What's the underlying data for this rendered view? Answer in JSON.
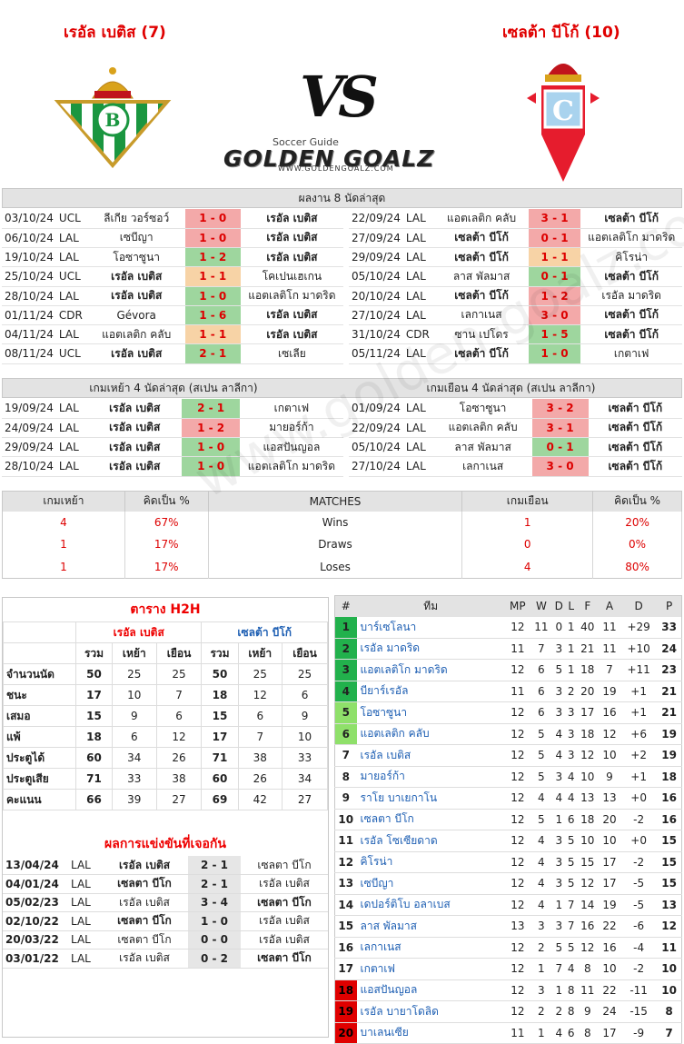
{
  "header": {
    "home_title": "เรอัล เบติส (7)",
    "away_title": "เซลต้า บีโก้ (10)",
    "vs": "VS",
    "brand_sub": "Soccer Guide",
    "brand": "GOLDEN GOALZ",
    "brand_url": "WWW.GOLDENGOALZ.COM",
    "watermark": "www.golden-goalz.com"
  },
  "last8": {
    "title": "ผลงาน 8 นัดล่าสุด",
    "home": [
      {
        "date": "03/10/24",
        "comp": "UCL",
        "t1": "ลีเกีย วอร์ซอว์",
        "score": "1 - 0",
        "t2": "เรอัล เบติส",
        "res": "loss",
        "b1": false,
        "b2": true
      },
      {
        "date": "06/10/24",
        "comp": "LAL",
        "t1": "เซบีญา",
        "score": "1 - 0",
        "t2": "เรอัล เบติส",
        "res": "loss",
        "b1": false,
        "b2": true
      },
      {
        "date": "19/10/24",
        "comp": "LAL",
        "t1": "โอซาซูนา",
        "score": "1 - 2",
        "t2": "เรอัล เบติส",
        "res": "win",
        "b1": false,
        "b2": true
      },
      {
        "date": "25/10/24",
        "comp": "UCL",
        "t1": "เรอัล เบติส",
        "score": "1 - 1",
        "t2": "โคเปนเฮเกน",
        "res": "draw",
        "b1": true,
        "b2": false
      },
      {
        "date": "28/10/24",
        "comp": "LAL",
        "t1": "เรอัล เบติส",
        "score": "1 - 0",
        "t2": "แอตเลติโก มาดริด",
        "res": "win",
        "b1": true,
        "b2": false
      },
      {
        "date": "01/11/24",
        "comp": "CDR",
        "t1": "Gévora",
        "score": "1 - 6",
        "t2": "เรอัล เบติส",
        "res": "win",
        "b1": false,
        "b2": true
      },
      {
        "date": "04/11/24",
        "comp": "LAL",
        "t1": "แอตเลติก คลับ",
        "score": "1 - 1",
        "t2": "เรอัล เบติส",
        "res": "draw",
        "b1": false,
        "b2": true
      },
      {
        "date": "08/11/24",
        "comp": "UCL",
        "t1": "เรอัล เบติส",
        "score": "2 - 1",
        "t2": "เซเลีย",
        "res": "win",
        "b1": true,
        "b2": false
      }
    ],
    "away": [
      {
        "date": "22/09/24",
        "comp": "LAL",
        "t1": "แอตเลติก คลับ",
        "score": "3 - 1",
        "t2": "เซลต้า บีโก้",
        "res": "loss",
        "b1": false,
        "b2": true
      },
      {
        "date": "27/09/24",
        "comp": "LAL",
        "t1": "เซลต้า บีโก้",
        "score": "0 - 1",
        "t2": "แอตเลติโก มาดริด",
        "res": "loss",
        "b1": true,
        "b2": false
      },
      {
        "date": "29/09/24",
        "comp": "LAL",
        "t1": "เซลต้า บีโก้",
        "score": "1 - 1",
        "t2": "คิโรน่า",
        "res": "draw",
        "b1": true,
        "b2": false
      },
      {
        "date": "05/10/24",
        "comp": "LAL",
        "t1": "ลาส พัลมาส",
        "score": "0 - 1",
        "t2": "เซลต้า บีโก้",
        "res": "win",
        "b1": false,
        "b2": true
      },
      {
        "date": "20/10/24",
        "comp": "LAL",
        "t1": "เซลต้า บีโก้",
        "score": "1 - 2",
        "t2": "เรอัล มาดริด",
        "res": "loss",
        "b1": true,
        "b2": false
      },
      {
        "date": "27/10/24",
        "comp": "LAL",
        "t1": "เลกาเนส",
        "score": "3 - 0",
        "t2": "เซลต้า บีโก้",
        "res": "loss",
        "b1": false,
        "b2": true
      },
      {
        "date": "31/10/24",
        "comp": "CDR",
        "t1": "ซาน เปโดร",
        "score": "1 - 5",
        "t2": "เซลต้า บีโก้",
        "res": "win",
        "b1": false,
        "b2": true
      },
      {
        "date": "05/11/24",
        "comp": "LAL",
        "t1": "เซลต้า บีโก้",
        "score": "1 - 0",
        "t2": "เกตาเฟ",
        "res": "win",
        "b1": true,
        "b2": false
      }
    ]
  },
  "last4": {
    "home_title": "เกมเหย้า 4 นัดล่าสุด (สเปน ลาลีกา)",
    "away_title": "เกมเยือน 4 นัดล่าสุด (สเปน ลาลีกา)",
    "home": [
      {
        "date": "19/09/24",
        "comp": "LAL",
        "t1": "เรอัล เบติส",
        "score": "2 - 1",
        "t2": "เกตาเฟ",
        "res": "win",
        "b1": true,
        "b2": false
      },
      {
        "date": "24/09/24",
        "comp": "LAL",
        "t1": "เรอัล เบติส",
        "score": "1 - 2",
        "t2": "มายอร์ก้า",
        "res": "loss",
        "b1": true,
        "b2": false
      },
      {
        "date": "29/09/24",
        "comp": "LAL",
        "t1": "เรอัล เบติส",
        "score": "1 - 0",
        "t2": "แอสปันญอล",
        "res": "win",
        "b1": true,
        "b2": false
      },
      {
        "date": "28/10/24",
        "comp": "LAL",
        "t1": "เรอัล เบติส",
        "score": "1 - 0",
        "t2": "แอตเลติโก มาดริด",
        "res": "win",
        "b1": true,
        "b2": false
      }
    ],
    "away": [
      {
        "date": "01/09/24",
        "comp": "LAL",
        "t1": "โอซาซูนา",
        "score": "3 - 2",
        "t2": "เซลต้า บีโก้",
        "res": "loss",
        "b1": false,
        "b2": true
      },
      {
        "date": "22/09/24",
        "comp": "LAL",
        "t1": "แอตเลติก คลับ",
        "score": "3 - 1",
        "t2": "เซลต้า บีโก้",
        "res": "loss",
        "b1": false,
        "b2": true
      },
      {
        "date": "05/10/24",
        "comp": "LAL",
        "t1": "ลาส พัลมาส",
        "score": "0 - 1",
        "t2": "เซลต้า บีโก้",
        "res": "win",
        "b1": false,
        "b2": true
      },
      {
        "date": "27/10/24",
        "comp": "LAL",
        "t1": "เลกาเนส",
        "score": "3 - 0",
        "t2": "เซลต้า บีโก้",
        "res": "loss",
        "b1": false,
        "b2": true
      }
    ]
  },
  "stats": {
    "headers": [
      "เกมเหย้า",
      "คิดเป็น %",
      "MATCHES",
      "เกมเยือน",
      "คิดเป็น %"
    ],
    "rows": [
      {
        "home": "4",
        "home_pct": "67%",
        "label": "Wins",
        "away": "1",
        "away_pct": "20%"
      },
      {
        "home": "1",
        "home_pct": "17%",
        "label": "Draws",
        "away": "0",
        "away_pct": "0%"
      },
      {
        "home": "1",
        "home_pct": "17%",
        "label": "Loses",
        "away": "4",
        "away_pct": "80%"
      }
    ]
  },
  "h2h": {
    "title": "ตาราง H2H",
    "home_team": "เรอัล เบติส",
    "away_team": "เซลต้า บีโก้",
    "subheaders": [
      "รวม",
      "เหย้า",
      "เยือน",
      "รวม",
      "เหย้า",
      "เยือน"
    ],
    "rows": [
      {
        "label": "จำนวนนัด",
        "v": [
          "50",
          "25",
          "25",
          "50",
          "25",
          "25"
        ]
      },
      {
        "label": "ชนะ",
        "v": [
          "17",
          "10",
          "7",
          "18",
          "12",
          "6"
        ]
      },
      {
        "label": "เสมอ",
        "v": [
          "15",
          "9",
          "6",
          "15",
          "6",
          "9"
        ]
      },
      {
        "label": "แพ้",
        "v": [
          "18",
          "6",
          "12",
          "17",
          "7",
          "10"
        ]
      },
      {
        "label": "ประตูได้",
        "v": [
          "60",
          "34",
          "26",
          "71",
          "38",
          "33"
        ]
      },
      {
        "label": "ประตูเสีย",
        "v": [
          "71",
          "33",
          "38",
          "60",
          "26",
          "34"
        ]
      },
      {
        "label": "คะแนน",
        "v": [
          "66",
          "39",
          "27",
          "69",
          "42",
          "27"
        ]
      }
    ],
    "results_title": "ผลการแข่งขันที่เจอกัน",
    "results": [
      {
        "date": "13/04/24",
        "comp": "LAL",
        "t1": "เรอัล เบติส",
        "score": "2 - 1",
        "t2": "เซลตา บีโก",
        "b1": true,
        "b2": false
      },
      {
        "date": "04/01/24",
        "comp": "LAL",
        "t1": "เซลตา บีโก",
        "score": "2 - 1",
        "t2": "เรอัล เบติส",
        "b1": true,
        "b2": false
      },
      {
        "date": "05/02/23",
        "comp": "LAL",
        "t1": "เรอัล เบติส",
        "score": "3 - 4",
        "t2": "เซลตา บีโก",
        "b1": false,
        "b2": true
      },
      {
        "date": "02/10/22",
        "comp": "LAL",
        "t1": "เซลตา บีโก",
        "score": "1 - 0",
        "t2": "เรอัล เบติส",
        "b1": true,
        "b2": false
      },
      {
        "date": "20/03/22",
        "comp": "LAL",
        "t1": "เซลตา บีโก",
        "score": "0 - 0",
        "t2": "เรอัล เบติส",
        "b1": false,
        "b2": false
      },
      {
        "date": "03/01/22",
        "comp": "LAL",
        "t1": "เรอัล เบติส",
        "score": "0 - 2",
        "t2": "เซลตา บีโก",
        "b1": false,
        "b2": true
      }
    ]
  },
  "league": {
    "headers": [
      "#",
      "ทีม",
      "MP",
      "W",
      "D",
      "L",
      "F",
      "A",
      "D",
      "P"
    ],
    "rows": [
      {
        "pos": "1",
        "team": "บาร์เซโลนา",
        "mp": "12",
        "w": "11",
        "d": "0",
        "l": "1",
        "f": "40",
        "a": "11",
        "gd": "+29",
        "p": "33",
        "zone": "g"
      },
      {
        "pos": "2",
        "team": "เรอัล มาดริด",
        "mp": "11",
        "w": "7",
        "d": "3",
        "l": "1",
        "f": "21",
        "a": "11",
        "gd": "+10",
        "p": "24",
        "zone": "g"
      },
      {
        "pos": "3",
        "team": "แอตเลติโก มาดริด",
        "mp": "12",
        "w": "6",
        "d": "5",
        "l": "1",
        "f": "18",
        "a": "7",
        "gd": "+11",
        "p": "23",
        "zone": "g"
      },
      {
        "pos": "4",
        "team": "บียาร์เรอัล",
        "mp": "11",
        "w": "6",
        "d": "3",
        "l": "2",
        "f": "20",
        "a": "19",
        "gd": "+1",
        "p": "21",
        "zone": "g"
      },
      {
        "pos": "5",
        "team": "โอซาซูนา",
        "mp": "12",
        "w": "6",
        "d": "3",
        "l": "3",
        "f": "17",
        "a": "16",
        "gd": "+1",
        "p": "21",
        "zone": "lg"
      },
      {
        "pos": "6",
        "team": "แอตเลติก คลับ",
        "mp": "12",
        "w": "5",
        "d": "4",
        "l": "3",
        "f": "18",
        "a": "12",
        "gd": "+6",
        "p": "19",
        "zone": "lg"
      },
      {
        "pos": "7",
        "team": "เรอัล เบติส",
        "mp": "12",
        "w": "5",
        "d": "4",
        "l": "3",
        "f": "12",
        "a": "10",
        "gd": "+2",
        "p": "19",
        "zone": ""
      },
      {
        "pos": "8",
        "team": "มายอร์ก้า",
        "mp": "12",
        "w": "5",
        "d": "3",
        "l": "4",
        "f": "10",
        "a": "9",
        "gd": "+1",
        "p": "18",
        "zone": ""
      },
      {
        "pos": "9",
        "team": "ราโย บาเยกาโน",
        "mp": "12",
        "w": "4",
        "d": "4",
        "l": "4",
        "f": "13",
        "a": "13",
        "gd": "+0",
        "p": "16",
        "zone": ""
      },
      {
        "pos": "10",
        "team": "เซลตา บีโก",
        "mp": "12",
        "w": "5",
        "d": "1",
        "l": "6",
        "f": "18",
        "a": "20",
        "gd": "-2",
        "p": "16",
        "zone": ""
      },
      {
        "pos": "11",
        "team": "เรอัล โซเซียดาด",
        "mp": "12",
        "w": "4",
        "d": "3",
        "l": "5",
        "f": "10",
        "a": "10",
        "gd": "+0",
        "p": "15",
        "zone": ""
      },
      {
        "pos": "12",
        "team": "คิโรน่า",
        "mp": "12",
        "w": "4",
        "d": "3",
        "l": "5",
        "f": "15",
        "a": "17",
        "gd": "-2",
        "p": "15",
        "zone": ""
      },
      {
        "pos": "13",
        "team": "เซบีญา",
        "mp": "12",
        "w": "4",
        "d": "3",
        "l": "5",
        "f": "12",
        "a": "17",
        "gd": "-5",
        "p": "15",
        "zone": ""
      },
      {
        "pos": "14",
        "team": "เดปอร์ติโบ อลาเบส",
        "mp": "12",
        "w": "4",
        "d": "1",
        "l": "7",
        "f": "14",
        "a": "19",
        "gd": "-5",
        "p": "13",
        "zone": ""
      },
      {
        "pos": "15",
        "team": "ลาส พัลมาส",
        "mp": "13",
        "w": "3",
        "d": "3",
        "l": "7",
        "f": "16",
        "a": "22",
        "gd": "-6",
        "p": "12",
        "zone": ""
      },
      {
        "pos": "16",
        "team": "เลกาเนส",
        "mp": "12",
        "w": "2",
        "d": "5",
        "l": "5",
        "f": "12",
        "a": "16",
        "gd": "-4",
        "p": "11",
        "zone": ""
      },
      {
        "pos": "17",
        "team": "เกตาเฟ",
        "mp": "12",
        "w": "1",
        "d": "7",
        "l": "4",
        "f": "8",
        "a": "10",
        "gd": "-2",
        "p": "10",
        "zone": ""
      },
      {
        "pos": "18",
        "team": "แอสปันญอล",
        "mp": "12",
        "w": "3",
        "d": "1",
        "l": "8",
        "f": "11",
        "a": "22",
        "gd": "-11",
        "p": "10",
        "zone": "r"
      },
      {
        "pos": "19",
        "team": "เรอัล บายาโดลิด",
        "mp": "12",
        "w": "2",
        "d": "2",
        "l": "8",
        "f": "9",
        "a": "24",
        "gd": "-15",
        "p": "8",
        "zone": "r"
      },
      {
        "pos": "20",
        "team": "บาเลนเซีย",
        "mp": "11",
        "w": "1",
        "d": "4",
        "l": "6",
        "f": "8",
        "a": "17",
        "gd": "-9",
        "p": "7",
        "zone": "r"
      }
    ]
  },
  "colors": {
    "accent_red": "#e00000",
    "link_blue": "#1e5fb3",
    "win": "#9ed69e",
    "draw": "#f7d3a6",
    "loss": "#f3a9a9"
  },
  "icons": {
    "home_crest": "betis-crest-icon",
    "away_crest": "celta-crest-icon"
  }
}
